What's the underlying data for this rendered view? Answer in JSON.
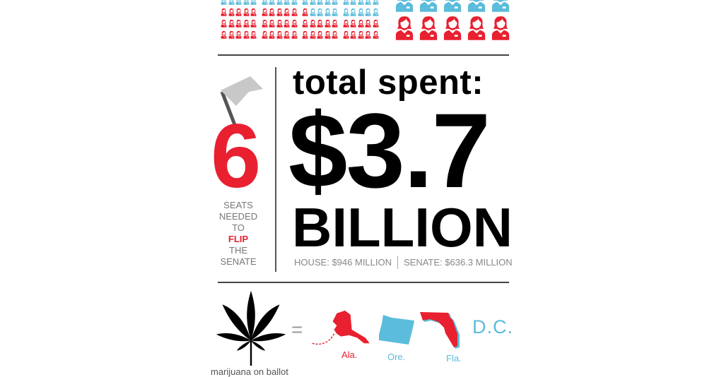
{
  "colors": {
    "red": "#e8202f",
    "blue": "#5bbcdb",
    "black": "#000000",
    "gray": "#888888"
  },
  "small_grid": {
    "icon": "person-icon",
    "rows": [
      {
        "red": 0,
        "blue": 20
      },
      {
        "red": 11,
        "blue": 9
      },
      {
        "red": 20,
        "blue": 0
      },
      {
        "red": 20,
        "blue": 0
      }
    ]
  },
  "large_grid": {
    "icon": "person-icon",
    "rows": [
      {
        "red": 0,
        "blue": 5
      },
      {
        "red": 5,
        "blue": 0
      }
    ]
  },
  "seats": {
    "number": "6",
    "icon": "flag-icon",
    "lines": [
      "SEATS",
      "NEEDED",
      "TO"
    ],
    "highlight": "FLIP",
    "lines_after": [
      "THE",
      "SENATE"
    ]
  },
  "spending": {
    "heading": "total spent:",
    "amount": "$3.7",
    "unit": "BILLION",
    "house": "HOUSE: $946 MILLION",
    "senate": "SENATE: $636.3 MILLION"
  },
  "marijuana": {
    "icon": "cannabis-leaf-icon",
    "equals": "=",
    "caption": "marijuana on ballot",
    "states": [
      {
        "label": "Ala.",
        "color": "#e8202f",
        "icon": "alaska-map-icon"
      },
      {
        "label": "Ore.",
        "color": "#5bbcdb",
        "icon": "oregon-map-icon"
      },
      {
        "label": "Fla.",
        "color": "#e8202f",
        "icon": "florida-map-icon"
      }
    ],
    "dc": "D.C."
  }
}
